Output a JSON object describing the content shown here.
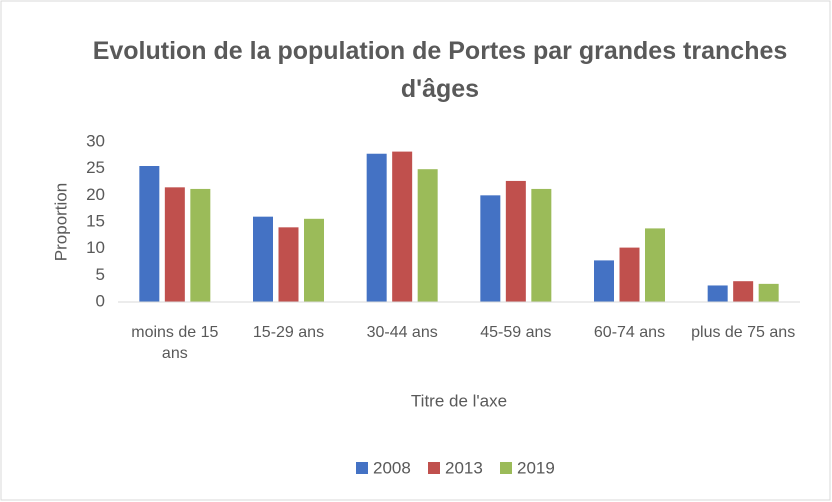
{
  "chart_data": {
    "type": "bar",
    "title": "Evolution de la population de Portes par grandes tranches d'âges",
    "x_label": "Titre de l'axe",
    "y_label": "Proportion",
    "categories": [
      "moins de 15 ans",
      "15-29 ans",
      "30-44 ans",
      "45-59 ans",
      "60-74 ans",
      "plus de 75 ans"
    ],
    "series": [
      {
        "name": "2008",
        "color": "#4472c4",
        "values": [
          25.5,
          16,
          27.8,
          20,
          7.8,
          3.1
        ]
      },
      {
        "name": "2013",
        "color": "#c0504d",
        "values": [
          21.5,
          14,
          28.2,
          22.7,
          10.2,
          3.9
        ]
      },
      {
        "name": "2019",
        "color": "#9bbb59",
        "values": [
          21.2,
          15.6,
          24.9,
          21.2,
          13.8,
          3.4
        ]
      }
    ],
    "ylim": [
      0,
      30
    ],
    "yticks": [
      0,
      5,
      10,
      15,
      20,
      25,
      30
    ],
    "grid": false,
    "legend": "bottom"
  }
}
